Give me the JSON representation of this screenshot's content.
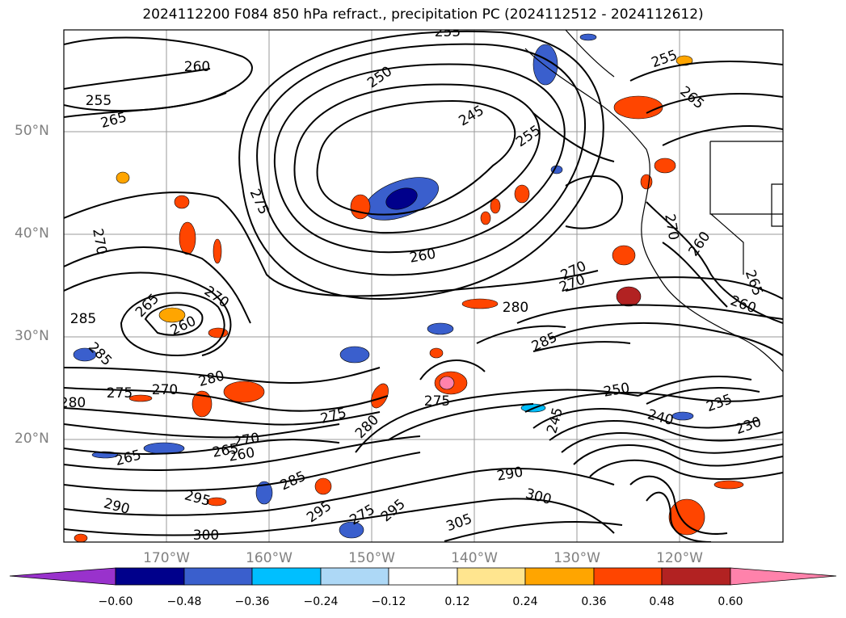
{
  "title": "2024112200 F084 850 hPa refract., precipitation PC (2024112512 - 2024112612)",
  "map": {
    "lat_labels": [
      "50°N",
      "40°N",
      "30°N",
      "20°N"
    ],
    "lon_labels": [
      "170°W",
      "160°W",
      "150°W",
      "140°W",
      "130°W",
      "120°W"
    ],
    "contour_labels": [
      "255",
      "260",
      "250",
      "255",
      "265",
      "245",
      "255",
      "275",
      "260",
      "270",
      "270",
      "285",
      "265",
      "270",
      "260",
      "280",
      "280",
      "285",
      "275",
      "270",
      "250",
      "235",
      "240",
      "230",
      "275",
      "275",
      "280",
      "270",
      "265",
      "260",
      "265",
      "290",
      "285",
      "245",
      "290",
      "295",
      "300",
      "295",
      "295",
      "275",
      "305",
      "300",
      "265",
      "260",
      "260",
      "265",
      "270",
      "270",
      "285",
      "280",
      "255"
    ],
    "grid": true,
    "field": "850 hPa refractivity contours with precipitation PC shading"
  },
  "colorbar": {
    "ticks": [
      "−0.60",
      "−0.48",
      "−0.36",
      "−0.24",
      "−0.12",
      "0.12",
      "0.24",
      "0.36",
      "0.48",
      "0.60"
    ],
    "colors": [
      "#9932cc",
      "#00008b",
      "#3a5fcd",
      "#00bfff",
      "#add8f6",
      "#ffffff",
      "#ffe58f",
      "#ffa500",
      "#ff4500",
      "#b22222",
      "#ff82ab"
    ],
    "extend": "both"
  }
}
